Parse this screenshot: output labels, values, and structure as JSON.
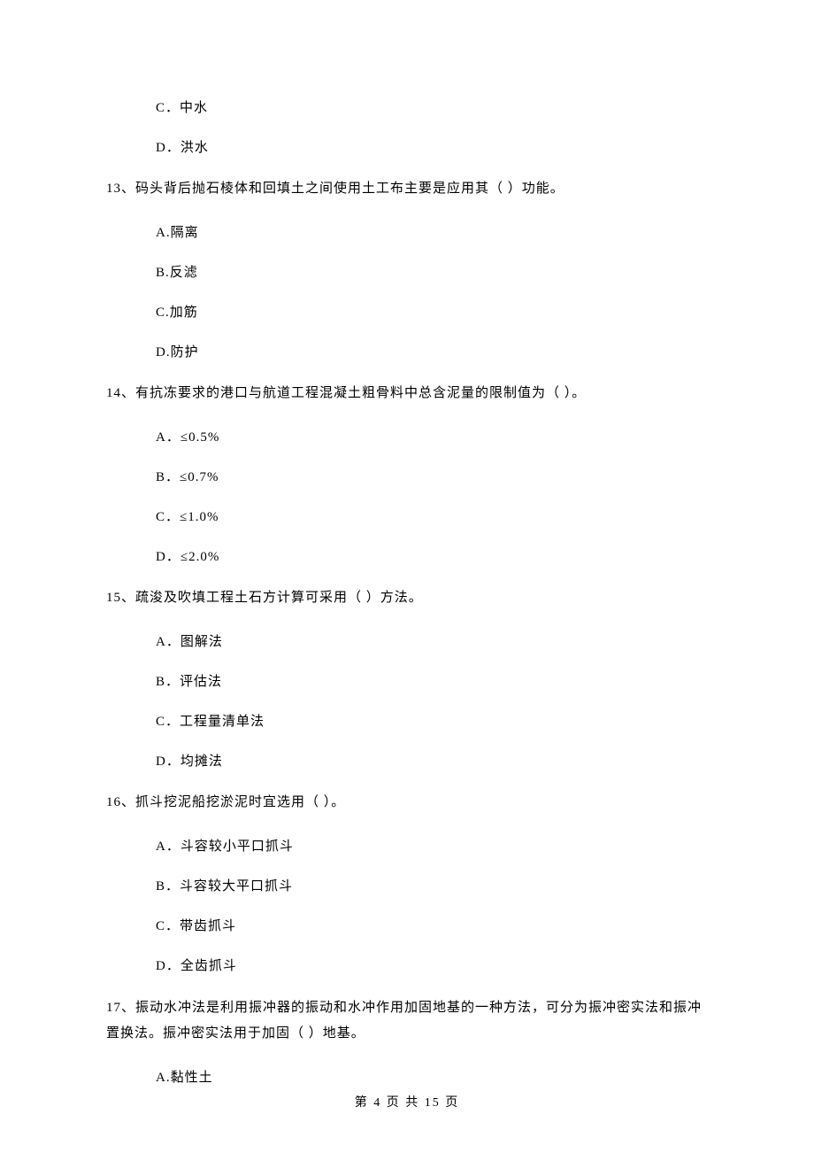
{
  "orphan_options": {
    "c": "C．中水",
    "d": "D．洪水"
  },
  "q13": {
    "stem": "13、码头背后抛石棱体和回填土之间使用土工布主要是应用其（    ）功能。",
    "a": "A.隔离",
    "b": "B.反滤",
    "c": "C.加筋",
    "d": "D.防护"
  },
  "q14": {
    "stem": "14、有抗冻要求的港口与航道工程混凝土粗骨料中总含泥量的限制值为（    ）。",
    "a": "A．≤0.5%",
    "b": "B．≤0.7%",
    "c": "C．≤1.0%",
    "d": "D．≤2.0%"
  },
  "q15": {
    "stem": "15、疏浚及吹填工程土石方计算可采用（    ）方法。",
    "a": "A．图解法",
    "b": "B．评估法",
    "c": "C．工程量清单法",
    "d": "D．均摊法"
  },
  "q16": {
    "stem": "16、抓斗挖泥船挖淤泥时宜选用（    ）。",
    "a": "A．斗容较小平口抓斗",
    "b": "B．斗容较大平口抓斗",
    "c": "C．带齿抓斗",
    "d": "D．全齿抓斗"
  },
  "q17": {
    "stem": "17、振动水冲法是利用振冲器的振动和水冲作用加固地基的一种方法，可分为振冲密实法和振冲置换法。振冲密实法用于加固（    ）地基。",
    "a": "A.黏性土"
  },
  "footer": "第 4 页 共 15 页"
}
